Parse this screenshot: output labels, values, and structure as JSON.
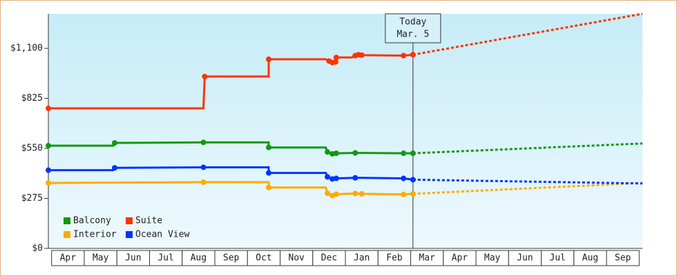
{
  "chart_data": {
    "type": "line",
    "xlim": [
      -0.1,
      18.1
    ],
    "xticks": [
      {
        "value": 0.5,
        "label": "Apr"
      },
      {
        "value": 1.5,
        "label": "May"
      },
      {
        "value": 2.5,
        "label": "Jun"
      },
      {
        "value": 3.5,
        "label": "Jul"
      },
      {
        "value": 4.5,
        "label": "Aug"
      },
      {
        "value": 5.5,
        "label": "Sep"
      },
      {
        "value": 6.5,
        "label": "Oct"
      },
      {
        "value": 7.5,
        "label": "Nov"
      },
      {
        "value": 8.5,
        "label": "Dec"
      },
      {
        "value": 9.5,
        "label": "Jan"
      },
      {
        "value": 10.5,
        "label": "Feb"
      },
      {
        "value": 11.5,
        "label": "Mar"
      },
      {
        "value": 12.5,
        "label": "Apr"
      },
      {
        "value": 13.5,
        "label": "May"
      },
      {
        "value": 14.5,
        "label": "Jun"
      },
      {
        "value": 15.5,
        "label": "Jul"
      },
      {
        "value": 16.5,
        "label": "Aug"
      },
      {
        "value": 17.5,
        "label": "Sep"
      }
    ],
    "ylim": [
      0,
      1290
    ],
    "yticks": [
      {
        "value": 0,
        "label": "$0"
      },
      {
        "value": 275,
        "label": "$275"
      },
      {
        "value": 550,
        "label": "$550"
      },
      {
        "value": 825,
        "label": "$825"
      },
      {
        "value": 1100,
        "label": "$1,100"
      }
    ],
    "annotation": {
      "x": 11.07,
      "lines": [
        "Today",
        "Mar. 5"
      ]
    },
    "legend": "lower left",
    "series": [
      {
        "name": "Balcony",
        "color": "#119911",
        "x": [
          -0.1,
          1.89,
          1.93,
          4.65,
          6.65,
          6.65,
          8.4,
          8.45,
          8.6,
          8.72,
          9.3,
          9.5,
          10.78,
          11.07
        ],
        "values": [
          565,
          565,
          580,
          583,
          583,
          555,
          555,
          530,
          520,
          523,
          525,
          525,
          523,
          523
        ],
        "forecast_x": [
          18.1
        ],
        "forecast_values": [
          577
        ]
      },
      {
        "name": "Suite",
        "color": "#ff3300",
        "x": [
          -0.1,
          0.9,
          4.65,
          4.69,
          6.65,
          6.65,
          8.4,
          8.5,
          8.6,
          8.7,
          8.72,
          9.2,
          9.3,
          9.4,
          9.5,
          10.78,
          11.07
        ],
        "values": [
          770,
          770,
          770,
          945,
          945,
          1040,
          1040,
          1030,
          1022,
          1025,
          1050,
          1050,
          1060,
          1065,
          1063,
          1060,
          1065
        ],
        "forecast_x": [
          18.1
        ],
        "forecast_values": [
          1290
        ]
      },
      {
        "name": "Interior",
        "color": "#ffaa00",
        "x": [
          -0.1,
          4.65,
          6.65,
          6.65,
          8.4,
          8.45,
          8.6,
          8.72,
          9.3,
          9.5,
          10.78,
          11.07
        ],
        "values": [
          360,
          364,
          364,
          335,
          335,
          303,
          290,
          298,
          302,
          300,
          297,
          300
        ],
        "forecast_x": [
          18.1
        ],
        "forecast_values": [
          360
        ]
      },
      {
        "name": "Ocean View",
        "color": "#0033ff",
        "x": [
          -0.1,
          1.89,
          1.93,
          4.65,
          6.65,
          6.65,
          8.4,
          8.45,
          8.6,
          8.72,
          9.3,
          9.5,
          10.78,
          11.07
        ],
        "values": [
          430,
          430,
          443,
          446,
          446,
          415,
          415,
          393,
          382,
          385,
          388,
          388,
          385,
          378
        ],
        "forecast_x": [
          18.1
        ],
        "forecast_values": [
          357
        ]
      }
    ]
  }
}
